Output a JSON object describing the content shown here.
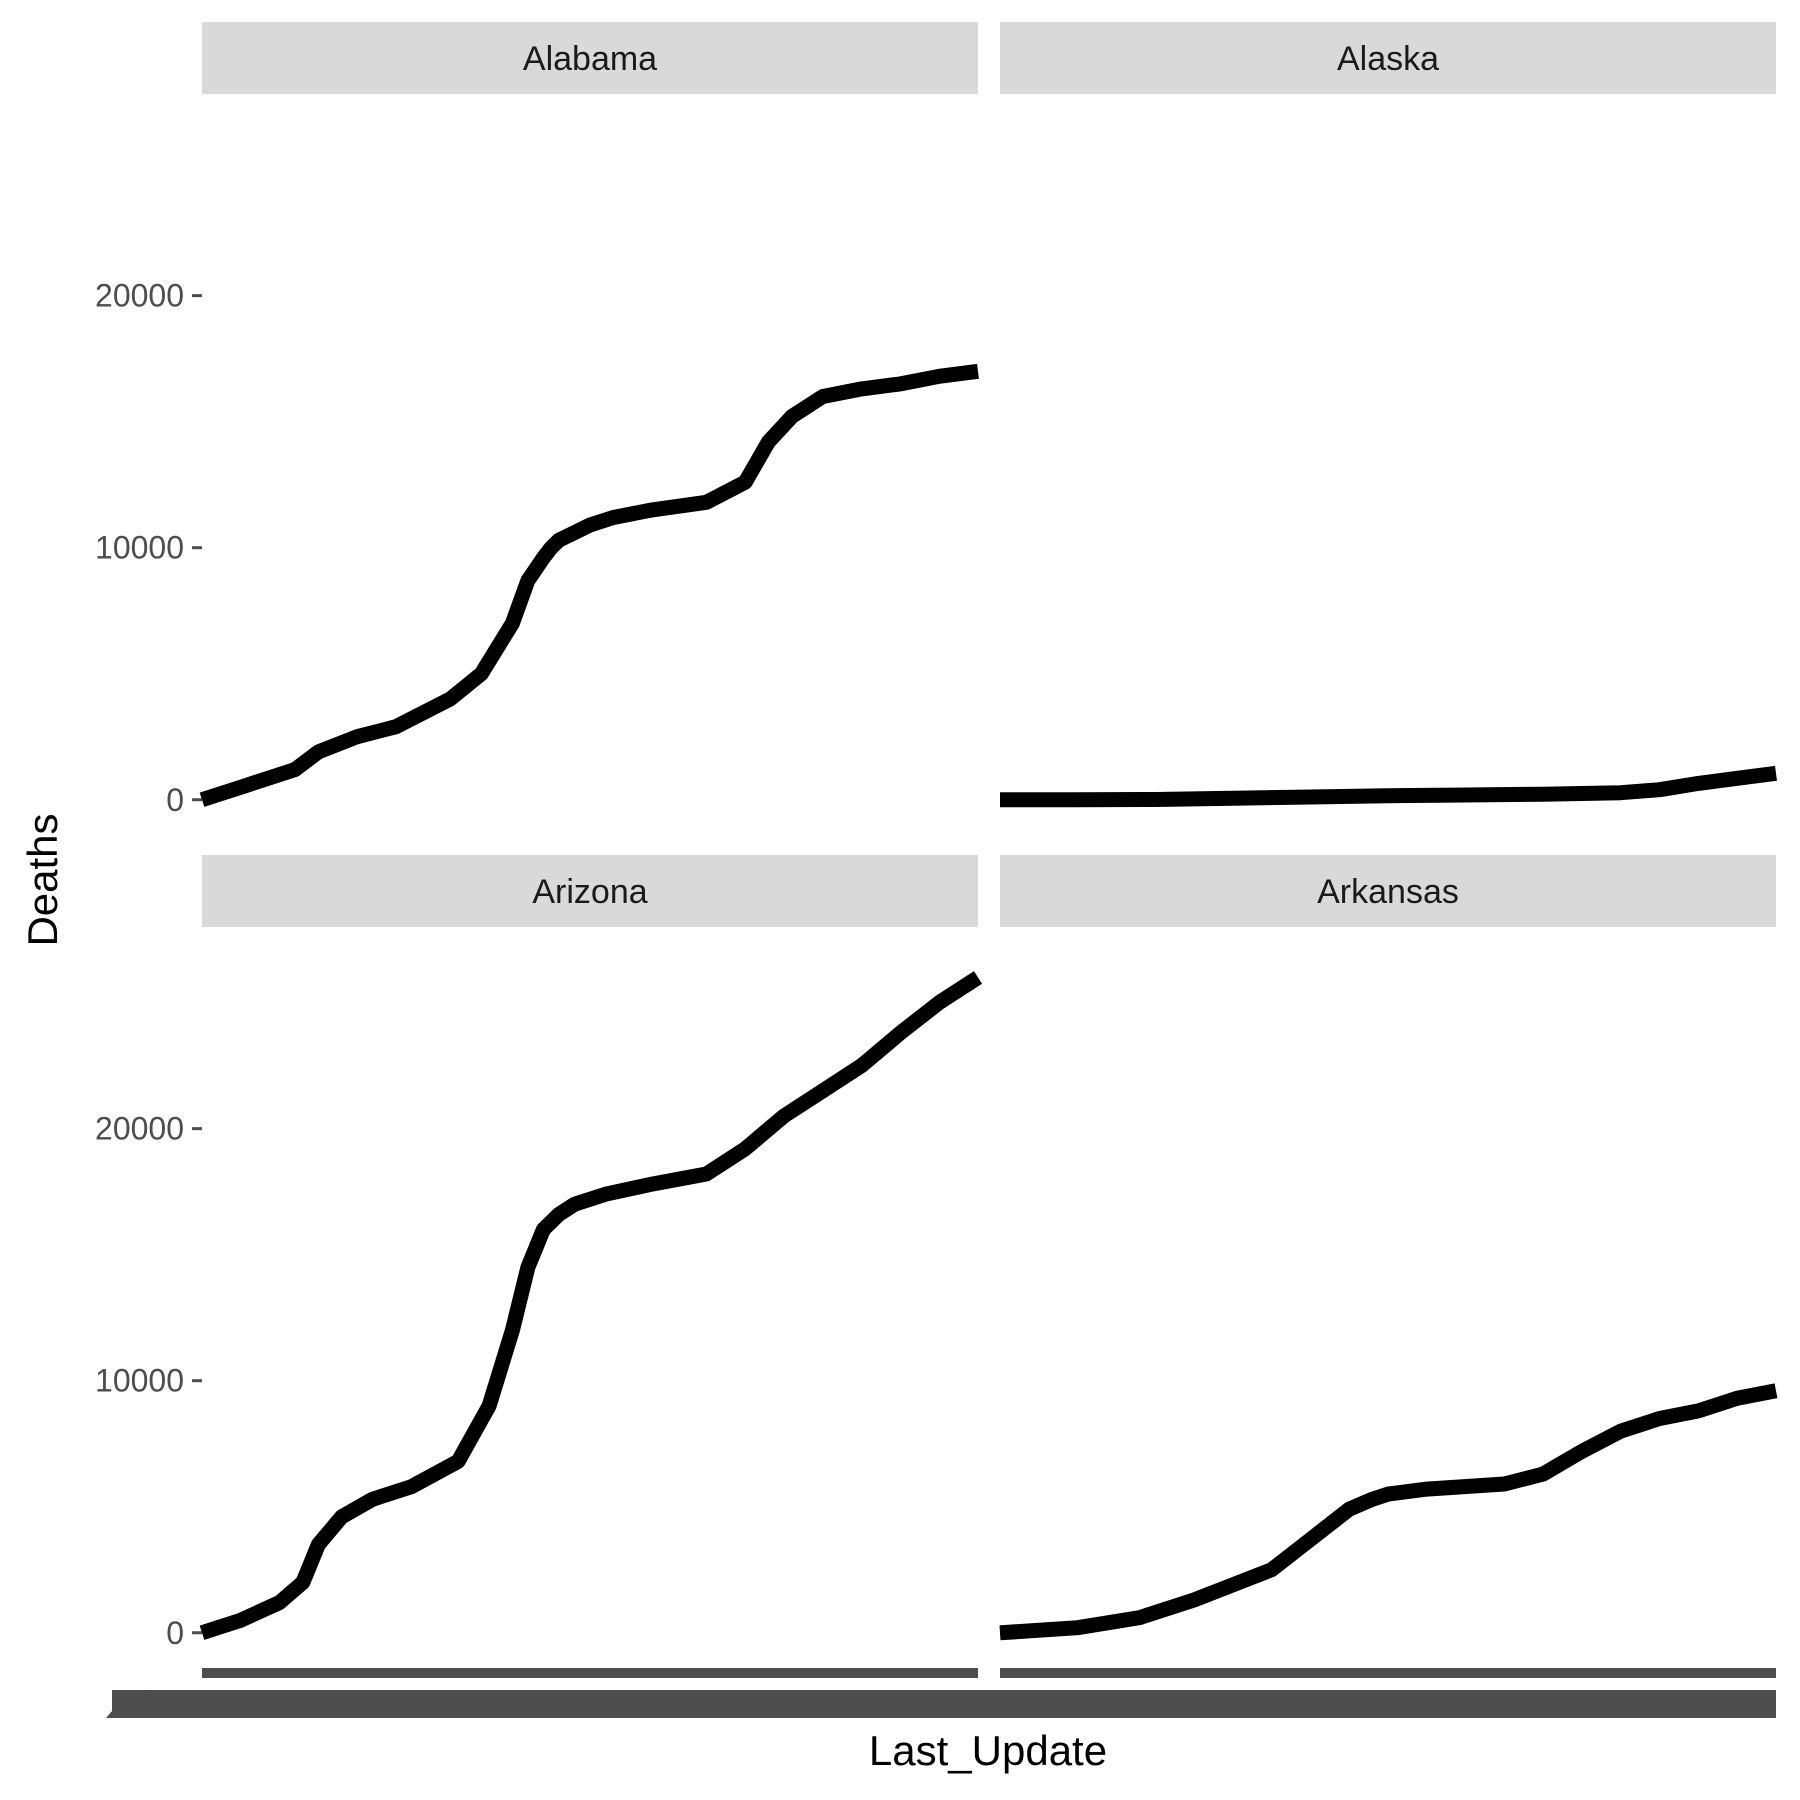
{
  "chart_data": {
    "type": "line",
    "layout": "facet_wrap 2x2",
    "xlabel": "Last_Update",
    "ylabel": "Deaths",
    "yticks": [
      0,
      10000,
      20000
    ],
    "ylim": [
      -1200,
      28000
    ],
    "xlim": [
      0,
      1
    ],
    "x_note": "x tick labels overplotted and unreadable",
    "colors": {
      "line": "#000000",
      "strip": "#d9d9d9",
      "tick": "#4d4d4d",
      "xaxis_overplot": "#4d4d4d"
    },
    "facets": [
      {
        "name": "Alabama",
        "x": [
          0,
          0.05,
          0.08,
          0.12,
          0.15,
          0.2,
          0.25,
          0.32,
          0.36,
          0.4,
          0.42,
          0.44,
          0.45,
          0.46,
          0.48,
          0.5,
          0.53,
          0.58,
          0.65,
          0.7,
          0.73,
          0.76,
          0.8,
          0.85,
          0.9,
          0.95,
          1.0
        ],
        "y": [
          0,
          500,
          800,
          1200,
          1900,
          2500,
          2900,
          4000,
          5000,
          7000,
          8700,
          9600,
          10000,
          10300,
          10600,
          10900,
          11200,
          11500,
          11800,
          12600,
          14200,
          15200,
          16000,
          16300,
          16500,
          16800,
          17000
        ]
      },
      {
        "name": "Alaska",
        "x": [
          0,
          0.1,
          0.2,
          0.3,
          0.4,
          0.5,
          0.6,
          0.7,
          0.8,
          0.85,
          0.9,
          0.95,
          1.0
        ],
        "y": [
          0,
          0,
          10,
          60,
          110,
          160,
          190,
          220,
          280,
          400,
          650,
          850,
          1050
        ]
      },
      {
        "name": "Arizona",
        "x": [
          0,
          0.05,
          0.1,
          0.13,
          0.15,
          0.18,
          0.22,
          0.27,
          0.33,
          0.37,
          0.4,
          0.42,
          0.44,
          0.46,
          0.48,
          0.52,
          0.58,
          0.65,
          0.7,
          0.75,
          0.8,
          0.85,
          0.9,
          0.95,
          1.0
        ],
        "y": [
          0,
          500,
          1200,
          2000,
          3500,
          4600,
          5300,
          5800,
          6800,
          9000,
          12000,
          14500,
          16000,
          16600,
          17000,
          17400,
          17800,
          18200,
          19200,
          20500,
          21500,
          22500,
          23800,
          25000,
          26000
        ]
      },
      {
        "name": "Arkansas",
        "x": [
          0,
          0.1,
          0.18,
          0.25,
          0.35,
          0.4,
          0.45,
          0.48,
          0.5,
          0.55,
          0.65,
          0.7,
          0.75,
          0.8,
          0.85,
          0.9,
          0.95,
          1.0
        ],
        "y": [
          0,
          200,
          600,
          1300,
          2500,
          3700,
          4900,
          5300,
          5500,
          5700,
          5900,
          6300,
          7200,
          8000,
          8500,
          8800,
          9300,
          9600
        ]
      }
    ]
  }
}
